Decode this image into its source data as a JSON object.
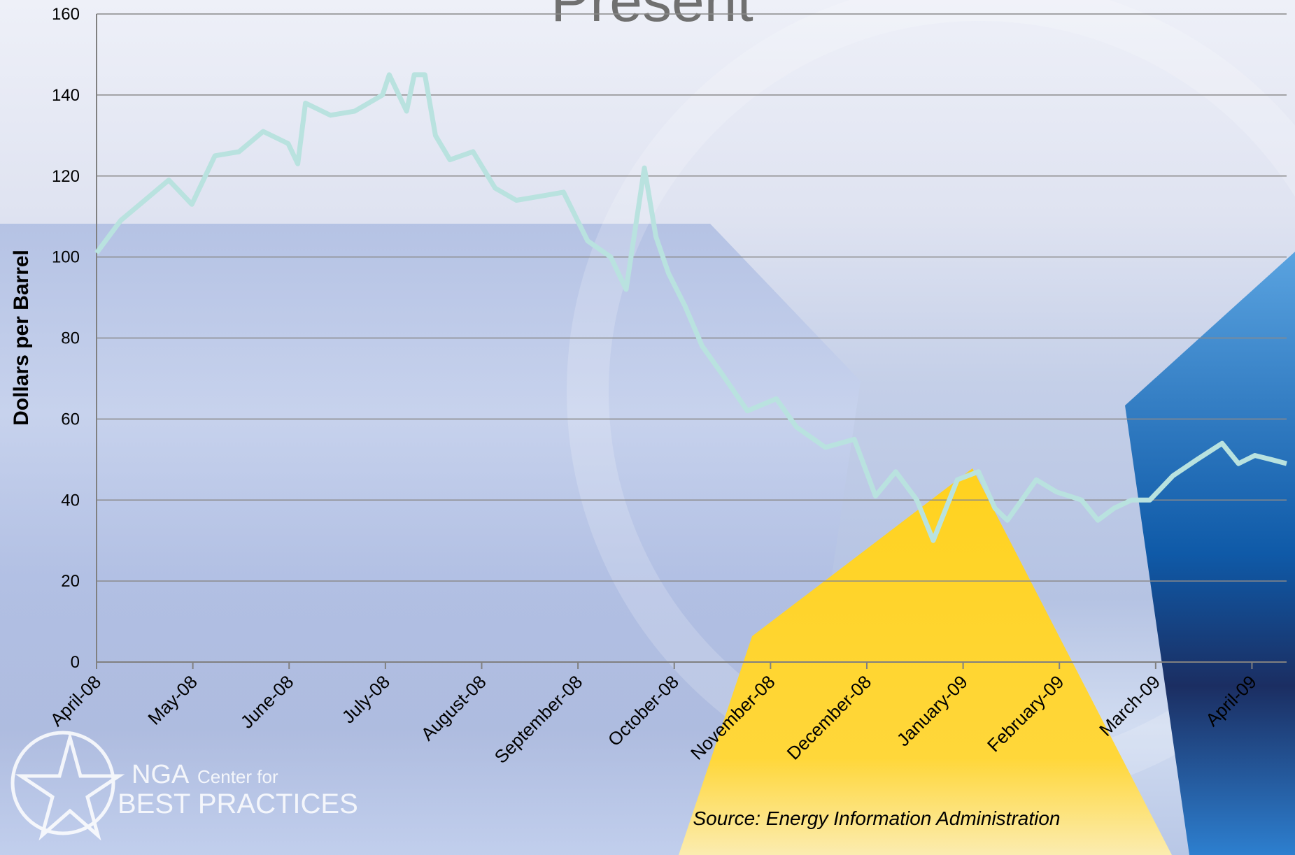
{
  "chart_data": {
    "type": "line",
    "title": "Present",
    "y_label": "Dollars per Barrel",
    "source": "Source: Energy Information Administration",
    "x": [
      0,
      0.25,
      0.5,
      0.75,
      0.99,
      1.23,
      1.48,
      1.73,
      1.99,
      2.09,
      2.17,
      2.43,
      2.68,
      2.97,
      3.04,
      3.22,
      3.3,
      3.41,
      3.52,
      3.67,
      3.91,
      4.14,
      4.36,
      4.61,
      4.85,
      5.1,
      5.34,
      5.5,
      5.69,
      5.81,
      5.94,
      6.11,
      6.29,
      6.5,
      6.76,
      7.06,
      7.27,
      7.57,
      7.87,
      8.09,
      8.3,
      8.52,
      8.69,
      8.94,
      9.16,
      9.33,
      9.46,
      9.76,
      9.97,
      10.23,
      10.4,
      10.57,
      10.75,
      10.94,
      11.18,
      11.43,
      11.69,
      11.86,
      12.03,
      12.2,
      12.36
    ],
    "series": [
      {
        "color": "#b9e2df",
        "values": [
          101,
          109,
          114,
          119,
          113,
          125,
          126,
          131,
          128,
          123,
          138,
          135,
          136,
          140,
          145,
          136,
          145,
          145,
          130,
          124,
          126,
          117,
          114,
          115,
          116,
          104,
          100,
          92,
          122,
          105,
          96,
          88,
          78,
          71,
          62,
          65,
          58,
          53,
          55,
          41,
          47,
          40,
          30,
          45,
          47,
          38,
          35,
          45,
          42,
          40,
          35,
          38,
          40,
          40,
          46,
          50,
          54,
          49,
          51,
          50,
          49
        ]
      }
    ],
    "xlim": [
      0,
      12.36
    ],
    "xticks": [
      {
        "value": 0,
        "label": "April-08"
      },
      {
        "value": 1,
        "label": "May-08"
      },
      {
        "value": 2,
        "label": "June-08"
      },
      {
        "value": 3,
        "label": "July-08"
      },
      {
        "value": 4,
        "label": "August-08"
      },
      {
        "value": 5,
        "label": "September-08"
      },
      {
        "value": 6,
        "label": "October-08"
      },
      {
        "value": 7,
        "label": "November-08"
      },
      {
        "value": 8,
        "label": "December-08"
      },
      {
        "value": 9,
        "label": "January-09"
      },
      {
        "value": 10,
        "label": "February-09"
      },
      {
        "value": 11,
        "label": "March-09"
      },
      {
        "value": 12,
        "label": "April-09"
      }
    ],
    "ylim": [
      0,
      160
    ],
    "yticks": [
      0,
      20,
      40,
      60,
      80,
      100,
      120,
      140,
      160
    ],
    "grid": true
  },
  "logo": {
    "name": "NGA",
    "sub": "Center for",
    "line2": "BEST PRACTICES"
  }
}
